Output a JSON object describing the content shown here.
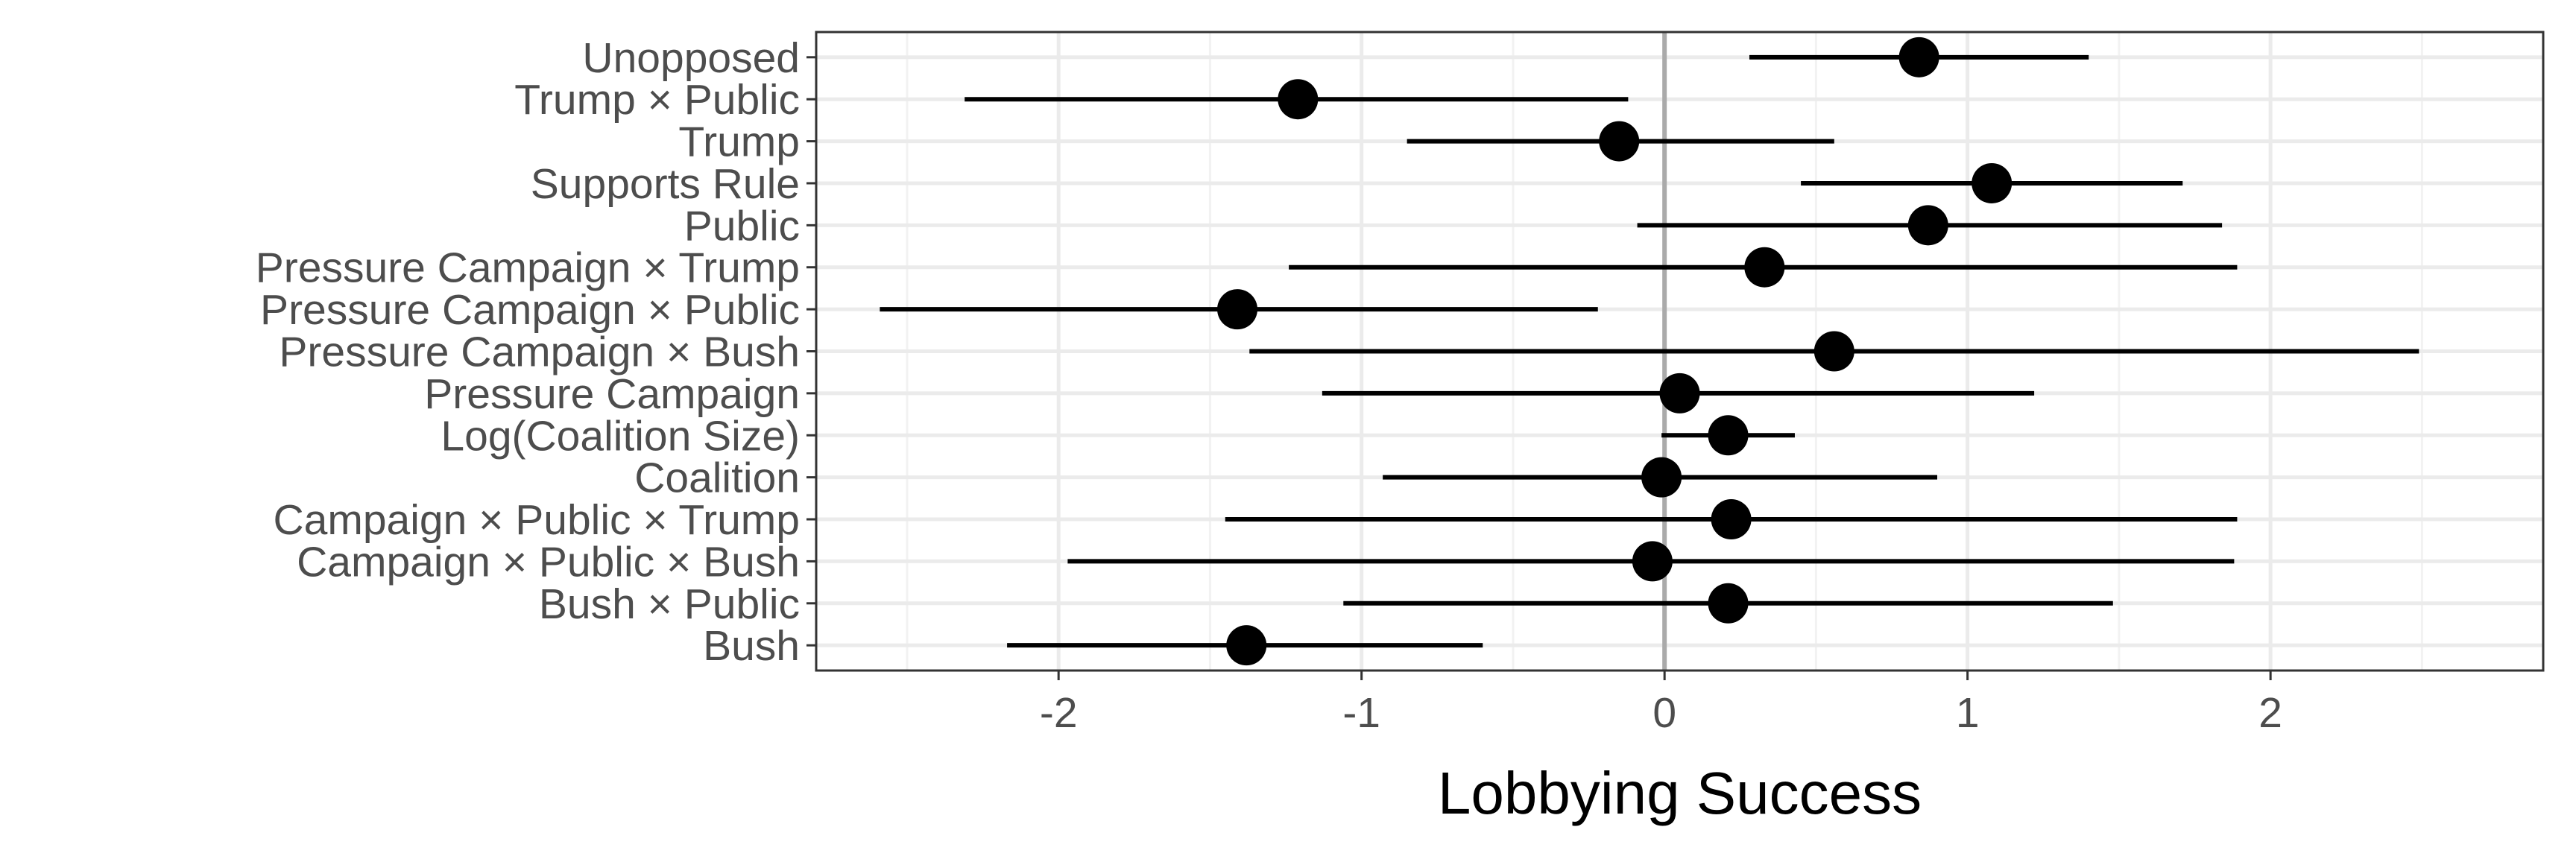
{
  "chart_data": {
    "type": "scatter",
    "subtype": "coefficient-plot",
    "title": "",
    "xlabel": "Lobbying Success",
    "ylabel": "",
    "xlim": [
      -2.8,
      2.9
    ],
    "xticks": [
      -2,
      -1,
      0,
      1,
      2
    ],
    "xtick_labels": [
      "-2",
      "-1",
      "0",
      "1",
      "2"
    ],
    "grid": true,
    "reference_line_x": 0,
    "legend": "none",
    "colors": {
      "point": "#000000",
      "interval": "#000000",
      "reference_line": "#aaaaaa",
      "grid_major": "#ebebeb",
      "grid_minor": "#f2f2f2",
      "panel_border": "#333333"
    },
    "terms": [
      {
        "label": "Unopposed",
        "estimate": 0.84,
        "low": 0.28,
        "high": 1.4
      },
      {
        "label": "Trump × Public",
        "estimate": -1.21,
        "low": -2.31,
        "high": -0.12
      },
      {
        "label": "Trump",
        "estimate": -0.15,
        "low": -0.85,
        "high": 0.56
      },
      {
        "label": "Supports Rule",
        "estimate": 1.08,
        "low": 0.45,
        "high": 1.71
      },
      {
        "label": "Public",
        "estimate": 0.87,
        "low": -0.09,
        "high": 1.84
      },
      {
        "label": "Pressure Campaign × Trump",
        "estimate": 0.33,
        "low": -1.24,
        "high": 1.89
      },
      {
        "label": "Pressure Campaign × Public",
        "estimate": -1.41,
        "low": -2.59,
        "high": -0.22
      },
      {
        "label": "Pressure Campaign × Bush",
        "estimate": 0.56,
        "low": -1.37,
        "high": 2.49
      },
      {
        "label": "Pressure Campaign",
        "estimate": 0.05,
        "low": -1.13,
        "high": 1.22
      },
      {
        "label": "Log(Coalition Size)",
        "estimate": 0.21,
        "low": -0.01,
        "high": 0.43
      },
      {
        "label": "Coalition",
        "estimate": -0.01,
        "low": -0.93,
        "high": 0.9
      },
      {
        "label": "Campaign × Public × Trump",
        "estimate": 0.22,
        "low": -1.45,
        "high": 1.89
      },
      {
        "label": "Campaign × Public × Bush",
        "estimate": -0.04,
        "low": -1.97,
        "high": 1.88
      },
      {
        "label": "Bush × Public",
        "estimate": 0.21,
        "low": -1.06,
        "high": 1.48
      },
      {
        "label": "Bush",
        "estimate": -1.38,
        "low": -2.17,
        "high": -0.6
      }
    ]
  }
}
